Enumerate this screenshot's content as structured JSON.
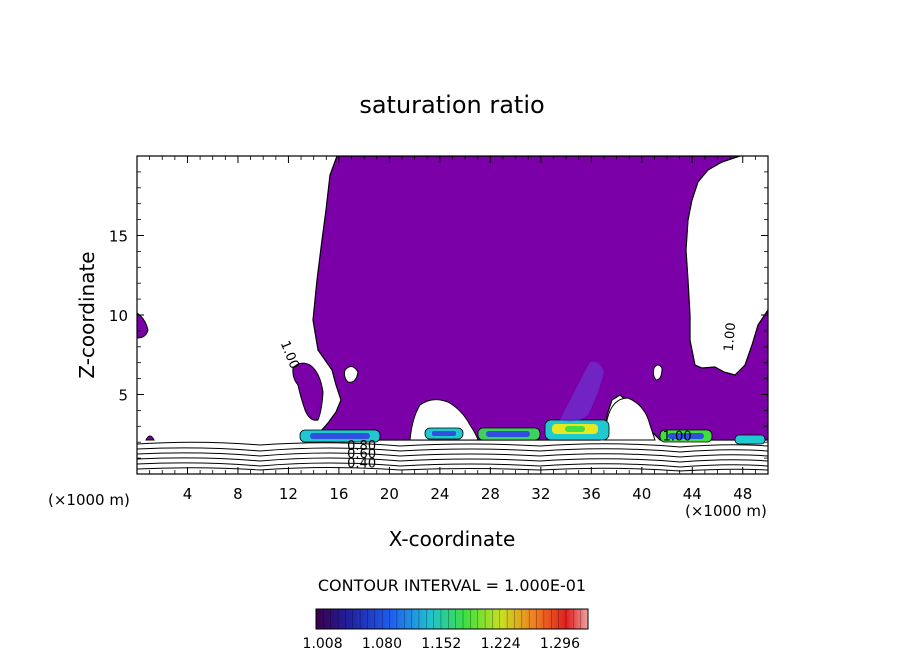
{
  "chart_data": {
    "type": "heatmap",
    "title": "saturation ratio",
    "xlabel": "X-coordinate",
    "ylabel": "Z-coordinate",
    "x_unit_left": "(×1000 m)",
    "x_unit_right": "(×1000 m)",
    "xlim": [
      0,
      50
    ],
    "ylim": [
      0,
      20
    ],
    "x_ticks": [
      4,
      8,
      12,
      16,
      20,
      24,
      28,
      32,
      36,
      40,
      44,
      48
    ],
    "y_ticks": [
      5,
      10,
      15
    ],
    "contour_labels": [
      {
        "text": "1.00",
        "x": 11.8,
        "z": 7.4
      },
      {
        "text": "1.00",
        "x": 47.3,
        "z": 8.6
      },
      {
        "text": "0.80",
        "x": 17.8,
        "z": 1.5
      },
      {
        "text": "0.60",
        "x": 17.8,
        "z": 1.0
      },
      {
        "text": "0.40",
        "x": 17.8,
        "z": 0.4
      },
      {
        "text": "1.00",
        "x": 42.8,
        "z": 2.1
      }
    ],
    "colorbar": {
      "labels": [
        "1.008",
        "1.080",
        "1.152",
        "1.224",
        "1.296"
      ],
      "min": 1.0,
      "max": 1.33
    },
    "footer": "CONTOUR INTERVAL = 1.000E-01",
    "colors": {
      "supersaturated_fill": "#7b00a8",
      "blue": "#3050e0",
      "cyan": "#20c8d0",
      "green": "#40e040",
      "yellow": "#e8e820",
      "red": "#e02020"
    }
  }
}
